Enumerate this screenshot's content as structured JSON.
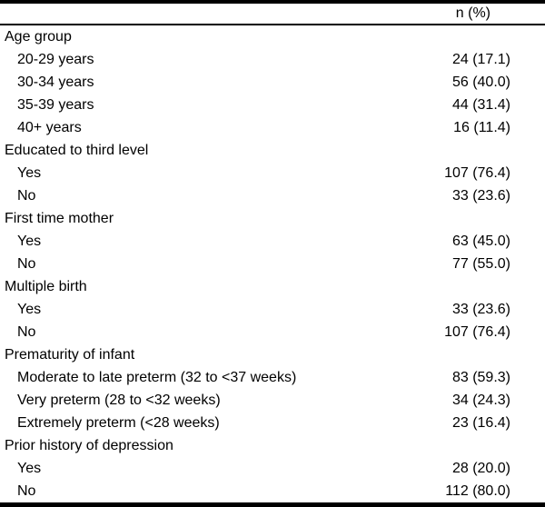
{
  "table": {
    "header": {
      "value_column_label": "n (%)"
    },
    "rows": [
      {
        "label": "Age group",
        "value": "",
        "indent": false
      },
      {
        "label": "20-29 years",
        "value": "24 (17.1)",
        "indent": true
      },
      {
        "label": "30-34 years",
        "value": "56 (40.0)",
        "indent": true
      },
      {
        "label": "35-39 years",
        "value": "44 (31.4)",
        "indent": true
      },
      {
        "label": "40+ years",
        "value": "16 (11.4)",
        "indent": true
      },
      {
        "label": "Educated to third level",
        "value": "",
        "indent": false
      },
      {
        "label": "Yes",
        "value": "107 (76.4)",
        "indent": true
      },
      {
        "label": "No",
        "value": "33 (23.6)",
        "indent": true
      },
      {
        "label": "First time mother",
        "value": "",
        "indent": false
      },
      {
        "label": "Yes",
        "value": "63 (45.0)",
        "indent": true
      },
      {
        "label": "No",
        "value": "77 (55.0)",
        "indent": true
      },
      {
        "label": "Multiple birth",
        "value": "",
        "indent": false
      },
      {
        "label": "Yes",
        "value": "33 (23.6)",
        "indent": true
      },
      {
        "label": "No",
        "value": "107 (76.4)",
        "indent": true
      },
      {
        "label": "Prematurity of infant",
        "value": "",
        "indent": false
      },
      {
        "label": "Moderate to late preterm (32 to <37 weeks)",
        "value": "83 (59.3)",
        "indent": true
      },
      {
        "label": "Very preterm (28 to <32 weeks)",
        "value": "34 (24.3)",
        "indent": true
      },
      {
        "label": "Extremely preterm (<28 weeks)",
        "value": "23 (16.4)",
        "indent": true
      },
      {
        "label": "Prior history of depression",
        "value": "",
        "indent": false
      },
      {
        "label": "Yes",
        "value": "28 (20.0)",
        "indent": true
      },
      {
        "label": "No",
        "value": "112 (80.0)",
        "indent": true
      }
    ]
  }
}
